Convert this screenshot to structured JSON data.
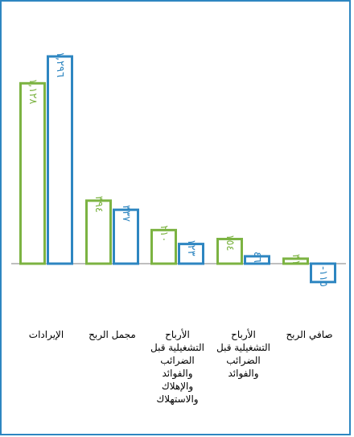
{
  "chart_data": {
    "type": "bar",
    "categories": [
      [
        "الإيرادات"
      ],
      [
        "مجمل الربح"
      ],
      [
        "الأرباح",
        "التشغيلية قبل",
        "الضرائب",
        "والفوائد",
        "والإهلاك",
        "والاستهلاك"
      ],
      [
        "الأرباح",
        "التشغيلية قبل",
        "الضرائب",
        "والفوائد"
      ],
      [
        "صافي الربح"
      ]
    ],
    "series": [
      {
        "color": "#7CB342",
        "values": [
          1128,
          394,
          210,
          154,
          31
        ],
        "labels": [
          "١,١٢٨",
          "٣٩٤",
          "٢١٠",
          "١٥٤",
          "٣١"
        ]
      },
      {
        "color": "#2E86C1",
        "values": [
          1296,
          337,
          123,
          46,
          -115
        ],
        "labels": [
          "١,٢٩٦",
          "٣٣٧",
          "١٢٣",
          "٤٦",
          "-١١٥"
        ]
      }
    ],
    "ylim": [
      -130,
      1300
    ],
    "grid": false,
    "legend": "none"
  }
}
